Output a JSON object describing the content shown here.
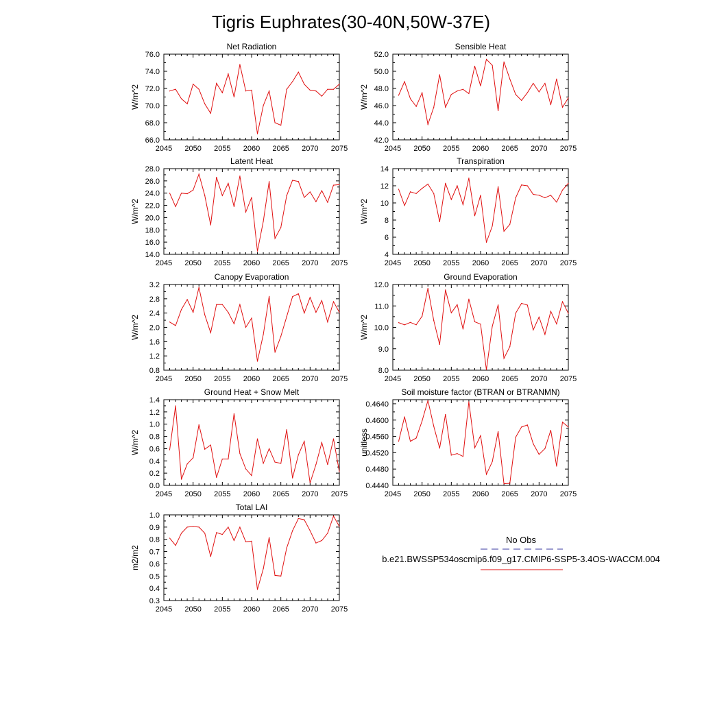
{
  "title": "Tigris Euphrates(30-40N,50W-37E)",
  "legend": {
    "obs_label": "No Obs",
    "obs_color": "#3a3aa0",
    "case_label": "b.e21.BWSSP534oscmip6.f09_g17.CMIP6-SSP5-3.4OS-WACCM.004",
    "case_color": "#e01010"
  },
  "chart_data": [
    {
      "type": "line",
      "title": "Net Radiation",
      "ylabel": "W/m^2",
      "xlim": [
        2045,
        2075
      ],
      "ylim": [
        66.0,
        76.0
      ],
      "xticks": [
        2045,
        2050,
        2055,
        2060,
        2065,
        2070,
        2075
      ],
      "yticks": [
        "66.0",
        "68.0",
        "70.0",
        "72.0",
        "74.0",
        "76.0"
      ],
      "x": [
        2046,
        2047,
        2048,
        2049,
        2050,
        2051,
        2052,
        2053,
        2054,
        2055,
        2056,
        2057,
        2058,
        2059,
        2060,
        2061,
        2062,
        2063,
        2064,
        2065,
        2066,
        2067,
        2068,
        2069,
        2070,
        2071,
        2072,
        2073,
        2074,
        2075
      ],
      "values": [
        71.7,
        71.9,
        70.8,
        70.2,
        72.5,
        71.9,
        70.2,
        69.1,
        72.6,
        71.5,
        73.7,
        71.0,
        74.8,
        71.7,
        71.8,
        66.7,
        70.0,
        71.7,
        68.0,
        67.7,
        71.9,
        72.8,
        73.9,
        72.5,
        71.8,
        71.7,
        71.1,
        71.9,
        71.9,
        72.5
      ]
    },
    {
      "type": "line",
      "title": "Sensible Heat",
      "ylabel": "W/m^2",
      "xlim": [
        2045,
        2075
      ],
      "ylim": [
        42.0,
        52.0
      ],
      "xticks": [
        2045,
        2050,
        2055,
        2060,
        2065,
        2070,
        2075
      ],
      "yticks": [
        "42.0",
        "44.0",
        "46.0",
        "48.0",
        "50.0",
        "52.0"
      ],
      "x": [
        2046,
        2047,
        2048,
        2049,
        2050,
        2051,
        2052,
        2053,
        2054,
        2055,
        2056,
        2057,
        2058,
        2059,
        2060,
        2061,
        2062,
        2063,
        2064,
        2065,
        2066,
        2067,
        2068,
        2069,
        2070,
        2071,
        2072,
        2073,
        2074,
        2075
      ],
      "values": [
        47.2,
        48.8,
        46.8,
        45.9,
        47.5,
        43.8,
        45.8,
        49.6,
        45.8,
        47.3,
        47.7,
        47.9,
        47.4,
        50.6,
        48.3,
        51.4,
        50.7,
        45.4,
        51.1,
        49.1,
        47.3,
        46.6,
        47.5,
        48.6,
        47.6,
        48.6,
        46.1,
        49.1,
        45.8,
        46.9
      ]
    },
    {
      "type": "line",
      "title": "Latent Heat",
      "ylabel": "W/m^2",
      "xlim": [
        2045,
        2075
      ],
      "ylim": [
        14.0,
        28.0
      ],
      "xticks": [
        2045,
        2050,
        2055,
        2060,
        2065,
        2070,
        2075
      ],
      "yticks": [
        "14.0",
        "16.0",
        "18.0",
        "20.0",
        "22.0",
        "24.0",
        "26.0",
        "28.0"
      ],
      "x": [
        2046,
        2047,
        2048,
        2049,
        2050,
        2051,
        2052,
        2053,
        2054,
        2055,
        2056,
        2057,
        2058,
        2059,
        2060,
        2061,
        2062,
        2063,
        2064,
        2065,
        2066,
        2067,
        2068,
        2069,
        2070,
        2071,
        2072,
        2073,
        2074,
        2075
      ],
      "values": [
        24.0,
        21.8,
        24.0,
        23.9,
        24.5,
        27.1,
        23.6,
        18.8,
        26.6,
        23.6,
        25.6,
        21.8,
        26.8,
        20.9,
        23.3,
        14.5,
        19.4,
        25.9,
        16.6,
        18.4,
        23.6,
        26.1,
        25.9,
        23.3,
        24.2,
        22.6,
        24.4,
        22.5,
        25.3,
        25.4
      ]
    },
    {
      "type": "line",
      "title": "Transpiration",
      "ylabel": "W/m^2",
      "xlim": [
        2045,
        2075
      ],
      "ylim": [
        4,
        14
      ],
      "xticks": [
        2045,
        2050,
        2055,
        2060,
        2065,
        2070,
        2075
      ],
      "yticks": [
        "4",
        "6",
        "8",
        "10",
        "12",
        "14"
      ],
      "x": [
        2046,
        2047,
        2048,
        2049,
        2050,
        2051,
        2052,
        2053,
        2054,
        2055,
        2056,
        2057,
        2058,
        2059,
        2060,
        2061,
        2062,
        2063,
        2064,
        2065,
        2066,
        2067,
        2068,
        2069,
        2070,
        2071,
        2072,
        2073,
        2074,
        2075
      ],
      "values": [
        11.6,
        9.7,
        11.3,
        11.1,
        11.7,
        12.2,
        11.1,
        7.8,
        12.3,
        10.4,
        12.0,
        9.8,
        12.9,
        8.5,
        10.9,
        5.4,
        7.3,
        11.9,
        6.7,
        7.5,
        10.6,
        12.1,
        12.0,
        11.0,
        10.9,
        10.6,
        10.9,
        10.1,
        11.5,
        12.3
      ]
    },
    {
      "type": "line",
      "title": "Canopy Evaporation",
      "ylabel": "W/m^2",
      "xlim": [
        2045,
        2075
      ],
      "ylim": [
        0.8,
        3.2
      ],
      "xticks": [
        2045,
        2050,
        2055,
        2060,
        2065,
        2070,
        2075
      ],
      "yticks": [
        "0.8",
        "1.2",
        "1.6",
        "2.0",
        "2.4",
        "2.8",
        "3.2"
      ],
      "x": [
        2046,
        2047,
        2048,
        2049,
        2050,
        2051,
        2052,
        2053,
        2054,
        2055,
        2056,
        2057,
        2058,
        2059,
        2060,
        2061,
        2062,
        2063,
        2064,
        2065,
        2066,
        2067,
        2068,
        2069,
        2070,
        2071,
        2072,
        2073,
        2074,
        2075
      ],
      "values": [
        2.15,
        2.05,
        2.5,
        2.78,
        2.42,
        3.12,
        2.35,
        1.85,
        2.64,
        2.64,
        2.42,
        2.1,
        2.64,
        2.0,
        2.26,
        1.05,
        1.8,
        2.87,
        1.3,
        1.75,
        2.3,
        2.86,
        2.94,
        2.4,
        2.84,
        2.42,
        2.75,
        2.15,
        2.72,
        2.42
      ]
    },
    {
      "type": "line",
      "title": "Ground Evaporation",
      "ylabel": "W/m^2",
      "xlim": [
        2045,
        2075
      ],
      "ylim": [
        8.0,
        12.0
      ],
      "xticks": [
        2045,
        2050,
        2055,
        2060,
        2065,
        2070,
        2075
      ],
      "yticks": [
        "8.0",
        "9.0",
        "10.0",
        "11.0",
        "12.0"
      ],
      "x": [
        2046,
        2047,
        2048,
        2049,
        2050,
        2051,
        2052,
        2053,
        2054,
        2055,
        2056,
        2057,
        2058,
        2059,
        2060,
        2061,
        2062,
        2063,
        2064,
        2065,
        2066,
        2067,
        2068,
        2069,
        2070,
        2071,
        2072,
        2073,
        2074,
        2075
      ],
      "values": [
        10.22,
        10.12,
        10.23,
        10.12,
        10.52,
        11.82,
        10.32,
        9.2,
        11.75,
        10.68,
        11.06,
        9.92,
        11.32,
        10.26,
        10.15,
        8.02,
        10.05,
        11.05,
        8.55,
        9.1,
        10.66,
        11.12,
        11.04,
        9.88,
        10.48,
        9.67,
        10.75,
        10.16,
        11.2,
        10.65
      ]
    },
    {
      "type": "line",
      "title": "Ground Heat + Snow Melt",
      "ylabel": "W/m^2",
      "xlim": [
        2045,
        2075
      ],
      "ylim": [
        0.0,
        1.4
      ],
      "xticks": [
        2045,
        2050,
        2055,
        2060,
        2065,
        2070,
        2075
      ],
      "yticks": [
        "0.0",
        "0.2",
        "0.4",
        "0.6",
        "0.8",
        "1.0",
        "1.2",
        "1.4"
      ],
      "x": [
        2046,
        2047,
        2048,
        2049,
        2050,
        2051,
        2052,
        2053,
        2054,
        2055,
        2056,
        2057,
        2058,
        2059,
        2060,
        2061,
        2062,
        2063,
        2064,
        2065,
        2066,
        2067,
        2068,
        2069,
        2070,
        2071,
        2072,
        2073,
        2074,
        2075
      ],
      "values": [
        0.58,
        1.3,
        0.1,
        0.35,
        0.45,
        0.99,
        0.59,
        0.66,
        0.13,
        0.43,
        0.43,
        1.17,
        0.52,
        0.27,
        0.16,
        0.76,
        0.36,
        0.6,
        0.38,
        0.36,
        0.91,
        0.12,
        0.5,
        0.72,
        0.04,
        0.34,
        0.7,
        0.34,
        0.76,
        0.22
      ]
    },
    {
      "type": "line",
      "title": "Soil moisture factor (BTRAN or BTRANMN)",
      "ylabel": "unitless",
      "xlim": [
        2045,
        2075
      ],
      "ylim": [
        0.444,
        0.465
      ],
      "xticks": [
        2045,
        2050,
        2055,
        2060,
        2065,
        2070,
        2075
      ],
      "yticks": [
        "0.4440",
        "0.4480",
        "0.4520",
        "0.4560",
        "0.4600",
        "0.4640"
      ],
      "x": [
        2046,
        2047,
        2048,
        2049,
        2050,
        2051,
        2052,
        2053,
        2054,
        2055,
        2056,
        2057,
        2058,
        2059,
        2060,
        2061,
        2062,
        2063,
        2064,
        2065,
        2066,
        2067,
        2068,
        2069,
        2070,
        2071,
        2072,
        2073,
        2074,
        2075
      ],
      "values": [
        0.4548,
        0.4608,
        0.4548,
        0.4556,
        0.4598,
        0.4648,
        0.4585,
        0.4531,
        0.4614,
        0.4514,
        0.4518,
        0.4511,
        0.4645,
        0.4532,
        0.4562,
        0.4467,
        0.4498,
        0.4572,
        0.4444,
        0.4445,
        0.4558,
        0.4583,
        0.4588,
        0.4542,
        0.4516,
        0.453,
        0.4575,
        0.4487,
        0.4595,
        0.4583
      ]
    },
    {
      "type": "line",
      "title": "Total LAI",
      "ylabel": "m2/m2",
      "xlim": [
        2045,
        2075
      ],
      "ylim": [
        0.3,
        1.0
      ],
      "xticks": [
        2045,
        2050,
        2055,
        2060,
        2065,
        2070,
        2075
      ],
      "yticks": [
        "0.3",
        "0.4",
        "0.5",
        "0.6",
        "0.7",
        "0.8",
        "0.9",
        "1.0"
      ],
      "x": [
        2046,
        2047,
        2048,
        2049,
        2050,
        2051,
        2052,
        2053,
        2054,
        2055,
        2056,
        2057,
        2058,
        2059,
        2060,
        2061,
        2062,
        2063,
        2064,
        2065,
        2066,
        2067,
        2068,
        2069,
        2070,
        2071,
        2072,
        2073,
        2074,
        2075
      ],
      "values": [
        0.81,
        0.75,
        0.85,
        0.9,
        0.905,
        0.9,
        0.85,
        0.66,
        0.855,
        0.84,
        0.9,
        0.79,
        0.9,
        0.78,
        0.785,
        0.39,
        0.56,
        0.815,
        0.505,
        0.5,
        0.73,
        0.87,
        0.97,
        0.96,
        0.87,
        0.77,
        0.79,
        0.85,
        0.99,
        0.905
      ]
    }
  ]
}
